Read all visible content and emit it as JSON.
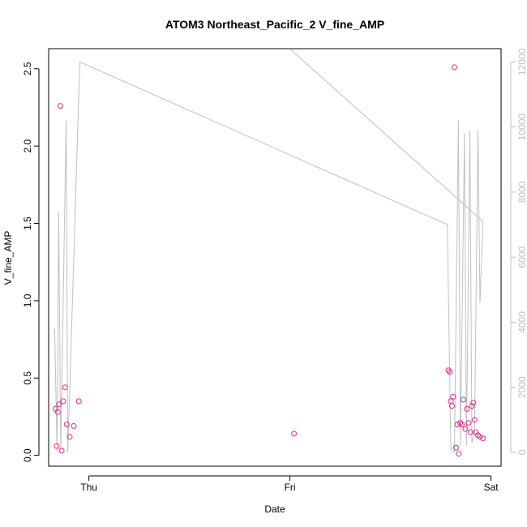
{
  "chart_data": {
    "type": "scatter",
    "title": "ATOM3 Northeast_Pacific_2 V_fine_AMP",
    "xlabel": "Date",
    "ylabel": "V_fine_AMP",
    "x_ticks": [
      "Thu",
      "Fri",
      "Sat"
    ],
    "y_ticks": [
      "0.0",
      "0.5",
      "1.0",
      "1.5",
      "2.0",
      "2.5"
    ],
    "y_right_ticks": [
      "0",
      "2000",
      "4000",
      "6000",
      "8000",
      "10000",
      "12000"
    ],
    "ylim": [
      -0.07,
      2.63
    ],
    "y_right_lim": [
      -425,
      12408
    ],
    "xlim_days": [
      -0.2,
      2.05
    ],
    "point_color": "#e7298a",
    "line_color": "#c0c0c0",
    "points": [
      {
        "day": -0.166,
        "value": 0.3
      },
      {
        "day": -0.16,
        "value": 0.06
      },
      {
        "day": -0.155,
        "value": 0.28
      },
      {
        "day": -0.148,
        "value": 0.33
      },
      {
        "day": -0.142,
        "value": 2.26
      },
      {
        "day": -0.135,
        "value": 0.03
      },
      {
        "day": -0.128,
        "value": 0.35
      },
      {
        "day": -0.118,
        "value": 0.44
      },
      {
        "day": -0.11,
        "value": 0.2
      },
      {
        "day": -0.095,
        "value": 0.12
      },
      {
        "day": -0.075,
        "value": 0.19
      },
      {
        "day": -0.05,
        "value": 0.35
      },
      {
        "day": 1.02,
        "value": 0.14
      },
      {
        "day": 1.788,
        "value": 0.55
      },
      {
        "day": 1.795,
        "value": 0.54
      },
      {
        "day": 1.8,
        "value": 0.35
      },
      {
        "day": 1.806,
        "value": 0.32
      },
      {
        "day": 1.812,
        "value": 0.38
      },
      {
        "day": 1.818,
        "value": 2.51
      },
      {
        "day": 1.826,
        "value": 0.05
      },
      {
        "day": 1.833,
        "value": 0.2
      },
      {
        "day": 1.84,
        "value": 0.01
      },
      {
        "day": 1.847,
        "value": 0.21
      },
      {
        "day": 1.855,
        "value": 0.2
      },
      {
        "day": 1.862,
        "value": 0.36
      },
      {
        "day": 1.872,
        "value": 0.17
      },
      {
        "day": 1.88,
        "value": 0.3
      },
      {
        "day": 1.888,
        "value": 0.21
      },
      {
        "day": 1.898,
        "value": 0.15
      },
      {
        "day": 1.905,
        "value": 0.32
      },
      {
        "day": 1.912,
        "value": 0.34
      },
      {
        "day": 1.918,
        "value": 0.23
      },
      {
        "day": 1.925,
        "value": 0.15
      },
      {
        "day": 1.935,
        "value": 0.13
      },
      {
        "day": 1.945,
        "value": 0.12
      },
      {
        "day": 1.96,
        "value": 0.11
      }
    ],
    "line": [
      {
        "day": -0.17,
        "value": 3800
      },
      {
        "day": -0.158,
        "value": 0
      },
      {
        "day": -0.15,
        "value": 7400
      },
      {
        "day": -0.14,
        "value": 0
      },
      {
        "day": -0.113,
        "value": 10200
      },
      {
        "day": -0.105,
        "value": 0
      },
      {
        "day": -0.045,
        "value": 12000
      },
      {
        "day": 1.783,
        "value": 7000
      },
      {
        "day": 1.8,
        "value": 100
      },
      {
        "day": 1.818,
        "value": 0
      },
      {
        "day": 1.838,
        "value": 10200
      },
      {
        "day": 1.848,
        "value": 200
      },
      {
        "day": 1.868,
        "value": 9800
      },
      {
        "day": 1.878,
        "value": 200
      },
      {
        "day": 1.895,
        "value": 9900
      },
      {
        "day": 1.905,
        "value": 300
      },
      {
        "day": 1.918,
        "value": 600
      },
      {
        "day": 1.935,
        "value": 9900
      },
      {
        "day": 1.945,
        "value": 4600
      },
      {
        "day": 1.96,
        "value": 7100
      },
      {
        "day": 1.0,
        "value": 12400
      }
    ]
  }
}
